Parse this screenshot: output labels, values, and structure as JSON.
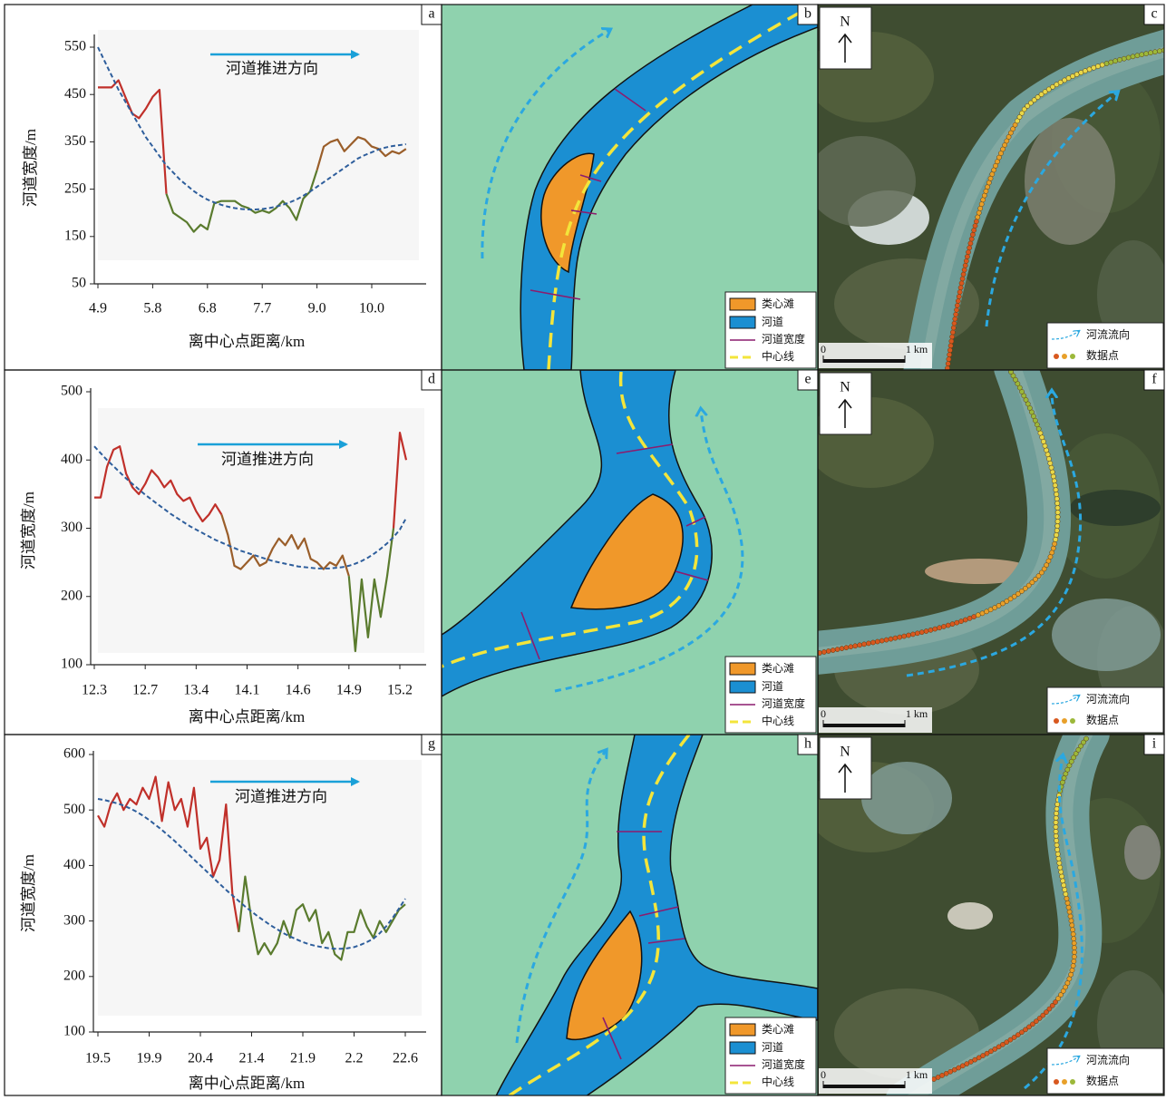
{
  "chart_data": [
    {
      "type": "line",
      "panel_label": "a",
      "xlabel": "离中心点距离/km",
      "ylabel": "河道宽度/m",
      "annotation": "河道推进方向",
      "categories": [
        "4.9",
        null,
        null,
        null,
        null,
        null,
        null,
        null,
        "5.8",
        null,
        null,
        null,
        null,
        null,
        null,
        null,
        "6.8",
        null,
        null,
        null,
        null,
        null,
        null,
        null,
        "7.7",
        null,
        null,
        null,
        null,
        null,
        null,
        null,
        "9.0",
        null,
        null,
        null,
        null,
        null,
        null,
        null,
        "10.0",
        null,
        null,
        null,
        null,
        null
      ],
      "ylim": [
        50,
        550
      ],
      "yticks": [
        50,
        150,
        250,
        350,
        450,
        550
      ],
      "series": [
        {
          "color": "#c0302a",
          "values": [
            465,
            465,
            465,
            480,
            445,
            410,
            400,
            420,
            445,
            460,
            240,
            null,
            null,
            null,
            null,
            null,
            null,
            null,
            null,
            null,
            null,
            null,
            null,
            null,
            null,
            null,
            null,
            null,
            null,
            null,
            null,
            null,
            null,
            null,
            null,
            null,
            null,
            null,
            null,
            null,
            null,
            null,
            null,
            null,
            null,
            null
          ]
        },
        {
          "color": "#5a7b2e",
          "values": [
            null,
            null,
            null,
            null,
            null,
            null,
            null,
            null,
            null,
            null,
            240,
            200,
            190,
            180,
            160,
            175,
            165,
            220,
            225,
            225,
            225,
            215,
            210,
            200,
            205,
            200,
            210,
            225,
            210,
            185,
            230,
            245,
            290,
            null,
            null,
            null,
            null,
            null,
            null,
            null,
            null,
            null,
            null,
            null,
            null,
            null
          ]
        },
        {
          "color": "#9a5e2a",
          "values": [
            null,
            null,
            null,
            null,
            null,
            null,
            null,
            null,
            null,
            null,
            null,
            null,
            null,
            null,
            null,
            null,
            null,
            null,
            null,
            null,
            null,
            null,
            null,
            null,
            null,
            null,
            null,
            null,
            null,
            null,
            null,
            null,
            290,
            340,
            350,
            355,
            330,
            345,
            360,
            355,
            340,
            335,
            320,
            330,
            325,
            335
          ]
        },
        {
          "color": "#2e5e9c",
          "dashed": true,
          "values": [
            550,
            520,
            490,
            460,
            435,
            410,
            385,
            360,
            340,
            320,
            300,
            285,
            270,
            258,
            246,
            236,
            228,
            222,
            217,
            213,
            210,
            208,
            207,
            207,
            208,
            210,
            213,
            217,
            222,
            228,
            236,
            245,
            255,
            265,
            275,
            285,
            295,
            305,
            315,
            322,
            328,
            334,
            338,
            341,
            343,
            345
          ]
        }
      ]
    },
    {
      "type": "line",
      "panel_label": "d",
      "xlabel": "离中心点距离/km",
      "ylabel": "河道宽度/m",
      "annotation": "河道推进方向",
      "categories": [
        "12.3",
        null,
        null,
        null,
        null,
        null,
        null,
        null,
        "12.7",
        null,
        null,
        null,
        null,
        null,
        null,
        null,
        "13.4",
        null,
        null,
        null,
        null,
        null,
        null,
        null,
        "14.1",
        null,
        null,
        null,
        null,
        null,
        null,
        null,
        "14.6",
        null,
        null,
        null,
        null,
        null,
        null,
        null,
        "14.9",
        null,
        null,
        null,
        null,
        null,
        null,
        null,
        "15.2",
        null
      ],
      "ylim": [
        100,
        500
      ],
      "yticks": [
        100,
        200,
        300,
        400,
        500
      ],
      "series": [
        {
          "color": "#c0302a",
          "values": [
            345,
            345,
            390,
            415,
            420,
            380,
            360,
            350,
            365,
            385,
            375,
            360,
            370,
            350,
            340,
            345,
            325,
            310,
            320,
            335,
            320,
            null,
            null,
            null,
            null,
            null,
            null,
            null,
            null,
            null,
            null,
            null,
            null,
            null,
            null,
            null,
            null,
            null,
            null,
            null,
            null,
            null,
            null,
            null,
            null,
            null,
            null,
            300,
            440,
            400
          ]
        },
        {
          "color": "#9a5e2a",
          "values": [
            null,
            null,
            null,
            null,
            null,
            null,
            null,
            null,
            null,
            null,
            null,
            null,
            null,
            null,
            null,
            null,
            null,
            null,
            null,
            null,
            320,
            290,
            245,
            240,
            250,
            260,
            245,
            250,
            270,
            285,
            275,
            290,
            270,
            285,
            255,
            250,
            240,
            250,
            245,
            260,
            230,
            null,
            null,
            null,
            null,
            null,
            null,
            null,
            null,
            null
          ]
        },
        {
          "color": "#5a7b2e",
          "values": [
            null,
            null,
            null,
            null,
            null,
            null,
            null,
            null,
            null,
            null,
            null,
            null,
            null,
            null,
            null,
            null,
            null,
            null,
            null,
            null,
            null,
            null,
            null,
            null,
            null,
            null,
            null,
            null,
            null,
            null,
            null,
            null,
            null,
            null,
            null,
            null,
            null,
            null,
            null,
            null,
            230,
            120,
            225,
            140,
            225,
            170,
            230,
            300,
            null,
            null
          ]
        },
        {
          "color": "#2e5e9c",
          "dashed": true,
          "values": [
            420,
            410,
            400,
            391,
            382,
            373,
            365,
            357,
            349,
            342,
            335,
            328,
            321,
            315,
            309,
            303,
            298,
            293,
            288,
            283,
            279,
            275,
            271,
            267,
            264,
            261,
            258,
            255,
            252,
            250,
            248,
            246,
            244,
            243,
            242,
            241,
            241,
            241,
            242,
            243,
            245,
            248,
            252,
            257,
            263,
            270,
            278,
            287,
            298,
            315
          ]
        }
      ]
    },
    {
      "type": "line",
      "panel_label": "g",
      "xlabel": "离中心点距离/km",
      "ylabel": "河道宽度/m",
      "annotation": "河道推进方向",
      "categories": [
        "19.5",
        null,
        null,
        null,
        null,
        null,
        null,
        null,
        "19.9",
        null,
        null,
        null,
        null,
        null,
        null,
        null,
        "20.4",
        null,
        null,
        null,
        null,
        null,
        null,
        null,
        "21.4",
        null,
        null,
        null,
        null,
        null,
        null,
        null,
        "21.9",
        null,
        null,
        null,
        null,
        null,
        null,
        null,
        "2.2",
        null,
        null,
        null,
        null,
        null,
        null,
        null,
        "22.6"
      ],
      "ylim": [
        100,
        600
      ],
      "yticks": [
        100,
        200,
        300,
        400,
        500,
        600
      ],
      "series": [
        {
          "color": "#c0302a",
          "values": [
            490,
            470,
            510,
            530,
            500,
            520,
            510,
            540,
            520,
            560,
            480,
            550,
            500,
            520,
            470,
            540,
            430,
            450,
            380,
            410,
            510,
            350,
            280,
            null,
            null,
            null,
            null,
            null,
            null,
            null,
            null,
            null,
            null,
            null,
            null,
            null,
            null,
            null,
            null,
            null,
            null,
            null,
            null,
            null,
            null,
            null,
            null,
            null,
            null
          ]
        },
        {
          "color": "#5a7b2e",
          "values": [
            null,
            null,
            null,
            null,
            null,
            null,
            null,
            null,
            null,
            null,
            null,
            null,
            null,
            null,
            null,
            null,
            null,
            null,
            null,
            null,
            null,
            null,
            280,
            380,
            300,
            240,
            260,
            240,
            260,
            300,
            270,
            320,
            330,
            300,
            320,
            260,
            280,
            240,
            230,
            280,
            280,
            320,
            290,
            270,
            300,
            280,
            300,
            320,
            330
          ]
        },
        {
          "color": "#2e5e9c",
          "dashed": true,
          "values": [
            520,
            518,
            515,
            512,
            508,
            503,
            497,
            490,
            482,
            473,
            464,
            454,
            444,
            433,
            422,
            411,
            400,
            389,
            378,
            367,
            356,
            346,
            336,
            326,
            317,
            308,
            300,
            292,
            285,
            278,
            272,
            267,
            262,
            258,
            255,
            253,
            251,
            250,
            250,
            251,
            253,
            257,
            262,
            268,
            278,
            290,
            305,
            322,
            340
          ]
        }
      ]
    }
  ],
  "schematics": [
    {
      "panel_label": "b",
      "legend": [
        "类心滩",
        "河道",
        "河道宽度",
        "中心线"
      ]
    },
    {
      "panel_label": "e",
      "legend": [
        "类心滩",
        "河道",
        "河道宽度",
        "中心线"
      ]
    },
    {
      "panel_label": "h",
      "legend": [
        "类心滩",
        "河道",
        "河道宽度",
        "中心线"
      ]
    }
  ],
  "images": [
    {
      "panel_label": "c",
      "north": "N",
      "scale_start": "0",
      "scale_end": "1 km",
      "legend": [
        "河流流向",
        "数据点"
      ]
    },
    {
      "panel_label": "f",
      "north": "N",
      "scale_start": "0",
      "scale_end": "1 km",
      "legend": [
        "河流流向",
        "数据点"
      ]
    },
    {
      "panel_label": "i",
      "north": "N",
      "scale_start": "0",
      "scale_end": "1 km",
      "legend": [
        "河流流向",
        "数据点"
      ]
    }
  ]
}
